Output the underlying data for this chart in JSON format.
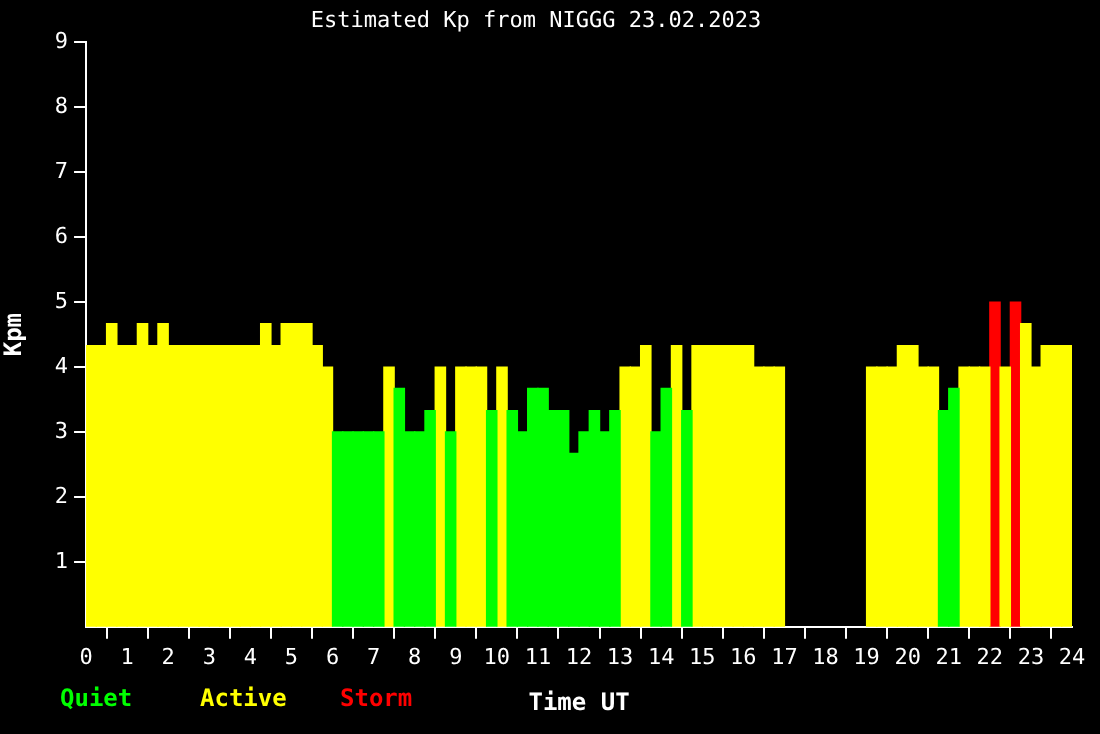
{
  "chart_data": {
    "type": "bar",
    "title": "Estimated Kp from NIGGG 23.02.2023",
    "xlabel": "Time UT",
    "ylabel": "Kpm",
    "xlim": [
      0,
      24
    ],
    "xticks": [
      0,
      1,
      2,
      3,
      4,
      5,
      6,
      7,
      8,
      9,
      10,
      11,
      12,
      13,
      14,
      15,
      16,
      17,
      18,
      19,
      20,
      21,
      22,
      23,
      24
    ],
    "ylim": [
      0,
      9
    ],
    "yticks": [
      1,
      2,
      3,
      4,
      5,
      6,
      7,
      8,
      9
    ],
    "grid": false,
    "legend": "bottom",
    "series": [
      {
        "name": "Quiet",
        "color": "#00ff00",
        "x": [
          6.125,
          6.375,
          6.625,
          6.875,
          7.125,
          7.625,
          7.875,
          8.125,
          8.375,
          8.875,
          9.875,
          10.375,
          10.625,
          10.875,
          11.125,
          11.375,
          11.625,
          11.875,
          12.125,
          12.375,
          12.625,
          12.875,
          13.875,
          14.125,
          14.625,
          20.875,
          21.125
        ],
        "values": [
          3,
          3,
          3,
          3,
          3,
          3.67,
          3,
          3,
          3.33,
          3,
          3.33,
          3.33,
          3,
          3.67,
          3.67,
          3.33,
          3.33,
          2.67,
          3,
          3.33,
          3,
          3.33,
          3,
          3.67,
          3.33,
          3.33,
          3.67
        ]
      },
      {
        "name": "Active",
        "color": "#ffff00",
        "x": [
          0.125,
          0.375,
          0.625,
          0.875,
          1.125,
          1.375,
          1.625,
          1.875,
          2.125,
          2.375,
          2.625,
          2.875,
          3.125,
          3.375,
          3.625,
          3.875,
          4.125,
          4.375,
          4.625,
          4.875,
          5.125,
          5.375,
          5.625,
          5.875,
          7.375,
          8.625,
          9.125,
          9.375,
          9.625,
          10.125,
          13.125,
          13.375,
          13.625,
          14.375,
          14.875,
          15.125,
          15.375,
          15.625,
          15.875,
          16.125,
          16.375,
          16.625,
          16.875,
          19.125,
          19.375,
          19.625,
          19.875,
          20.125,
          20.375,
          20.625,
          21.375,
          21.625,
          21.875,
          22.375,
          22.875,
          23.125,
          23.375,
          23.625,
          23.875
        ],
        "values": [
          4.33,
          4.33,
          4.67,
          4.33,
          4.33,
          4.67,
          4.33,
          4.67,
          4.33,
          4.33,
          4.33,
          4.33,
          4.33,
          4.33,
          4.33,
          4.33,
          4.33,
          4.67,
          4.33,
          4.67,
          4.67,
          4.67,
          4.33,
          4,
          4,
          4,
          4,
          4,
          4,
          4,
          4,
          4,
          4.33,
          4.33,
          4.33,
          4.33,
          4.33,
          4.33,
          4.33,
          4.33,
          4,
          4,
          4,
          4,
          4,
          4,
          4.33,
          4.33,
          4,
          4,
          4,
          4,
          4,
          4,
          4.67,
          4,
          4.33,
          4.33,
          4.33
        ]
      },
      {
        "name": "Storm",
        "color": "#ff0000",
        "x": [
          22.125,
          22.625
        ],
        "values": [
          5,
          5
        ]
      }
    ]
  }
}
